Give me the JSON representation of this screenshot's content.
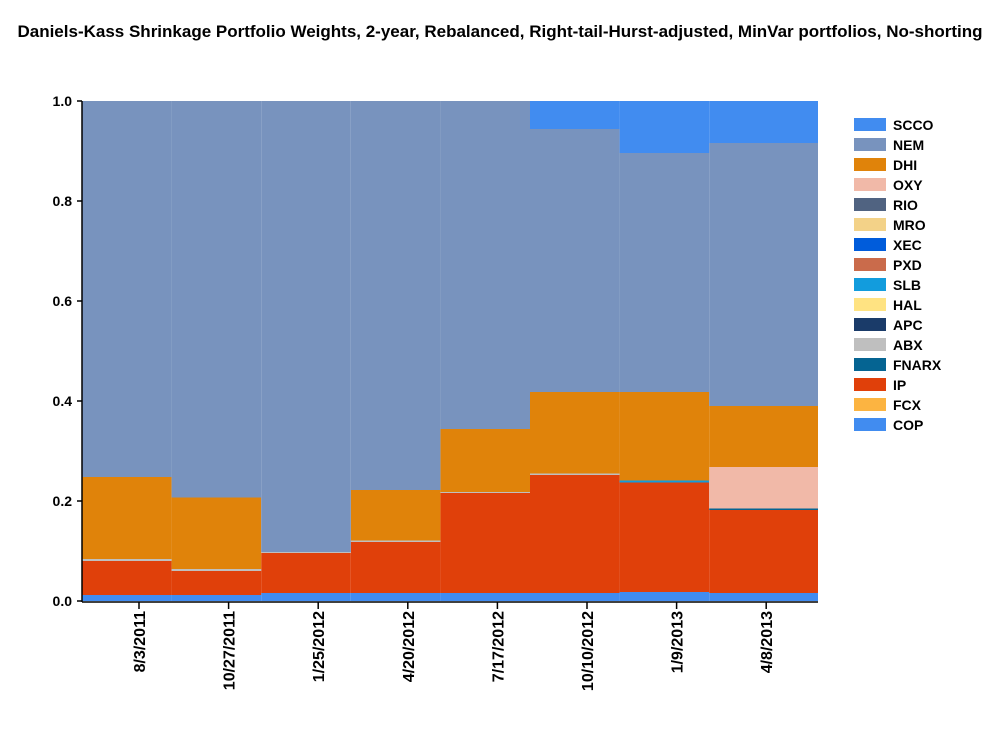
{
  "chart_data": {
    "type": "area",
    "subtype": "stacked-step",
    "title": "Daniels-Kass Shrinkage Portfolio Weights, 2-year, Rebalanced, Right-tail-Hurst-adjusted, MinVar portfolios, No-shorting",
    "xlabel": "",
    "ylabel": "",
    "ylim": [
      0,
      1
    ],
    "yticks": [
      "0.0",
      "0.2",
      "0.4",
      "0.6",
      "0.8",
      "1.0"
    ],
    "categories": [
      "8/3/2011",
      "10/27/2011",
      "1/25/2012",
      "4/20/2012",
      "7/17/2012",
      "10/10/2012",
      "1/9/2013",
      "4/8/2013"
    ],
    "legend_position": "right",
    "series": [
      {
        "name": "COP",
        "color": "#418CF0",
        "values": [
          0.012,
          0.012,
          0.016,
          0.016,
          0.016,
          0.016,
          0.018,
          0.016
        ]
      },
      {
        "name": "FCX",
        "color": "#FCB441",
        "values": [
          0,
          0,
          0,
          0,
          0,
          0,
          0,
          0
        ]
      },
      {
        "name": "IP",
        "color": "#E0400A",
        "values": [
          0.068,
          0.048,
          0.08,
          0.102,
          0.2,
          0.236,
          0.219,
          0.166
        ]
      },
      {
        "name": "FNARX",
        "color": "#056492",
        "values": [
          0,
          0,
          0,
          0,
          0,
          0,
          0,
          0.003
        ]
      },
      {
        "name": "ABX",
        "color": "#BFBFBF",
        "values": [
          0.004,
          0.004,
          0.002,
          0.003,
          0.002,
          0.003,
          0,
          0
        ]
      },
      {
        "name": "APC",
        "color": "#1A3B69",
        "values": [
          0,
          0,
          0,
          0,
          0,
          0,
          0,
          0
        ]
      },
      {
        "name": "HAL",
        "color": "#FFE382",
        "values": [
          0,
          0,
          0,
          0,
          0,
          0,
          0,
          0
        ]
      },
      {
        "name": "SLB",
        "color": "#129CDD",
        "values": [
          0,
          0,
          0,
          0,
          0,
          0,
          0.004,
          0
        ]
      },
      {
        "name": "PXD",
        "color": "#CA6B4B",
        "values": [
          0,
          0,
          0,
          0,
          0,
          0,
          0,
          0
        ]
      },
      {
        "name": "XEC",
        "color": "#005CDB",
        "values": [
          0,
          0,
          0,
          0,
          0,
          0,
          0,
          0
        ]
      },
      {
        "name": "MRO",
        "color": "#F3D288",
        "values": [
          0,
          0,
          0,
          0,
          0,
          0,
          0,
          0
        ]
      },
      {
        "name": "RIO",
        "color": "#506381",
        "values": [
          0,
          0,
          0,
          0,
          0,
          0,
          0,
          0
        ]
      },
      {
        "name": "OXY",
        "color": "#F1B9A8",
        "values": [
          0,
          0,
          0,
          0,
          0,
          0,
          0,
          0.083
        ]
      },
      {
        "name": "DHI",
        "color": "#E0830A",
        "values": [
          0.164,
          0.143,
          0,
          0.101,
          0.126,
          0.163,
          0.177,
          0.122
        ]
      },
      {
        "name": "NEM",
        "color": "#7893BE",
        "values": [
          0.752,
          0.793,
          0.902,
          0.778,
          0.656,
          0.526,
          0.478,
          0.526
        ]
      },
      {
        "name": "SCCO",
        "color": "#418CF0",
        "values": [
          0,
          0,
          0,
          0,
          0,
          0.056,
          0.104,
          0.084
        ]
      }
    ]
  }
}
